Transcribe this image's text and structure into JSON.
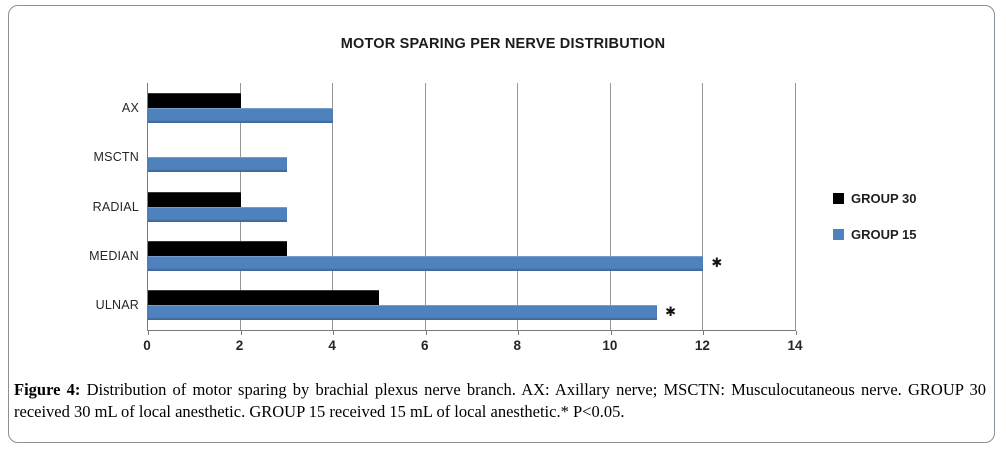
{
  "chart_data": {
    "type": "bar",
    "orientation": "horizontal",
    "title": "MOTOR SPARING PER NERVE DISTRIBUTION",
    "categories": [
      "AX",
      "MSCTN",
      "RADIAL",
      "MEDIAN",
      "ULNAR"
    ],
    "series": [
      {
        "name": "GROUP 30",
        "color": "#000000",
        "values": [
          2,
          0,
          2,
          3,
          5
        ],
        "stars": [
          "",
          "",
          "",
          "",
          ""
        ]
      },
      {
        "name": "GROUP 15",
        "color": "#4F81BD",
        "values": [
          4,
          3,
          3,
          12,
          11
        ],
        "stars": [
          "",
          "",
          "",
          "✱",
          "✱"
        ]
      }
    ],
    "xlim": [
      0,
      14
    ],
    "x_ticks": [
      0,
      2,
      4,
      6,
      8,
      10,
      12,
      14
    ],
    "grid": "vertical-only",
    "legend_position": "right",
    "significance_note": "* P<0.05"
  },
  "caption": {
    "label": "Figure 4:",
    "text": " Distribution of motor sparing by brachial plexus nerve branch. AX: Axillary nerve; MSCTN: Musculocutaneous nerve. GROUP 30 received 30 mL of local anesthetic. GROUP 15 received 15 mL of local anesthetic.* P<0.05."
  }
}
